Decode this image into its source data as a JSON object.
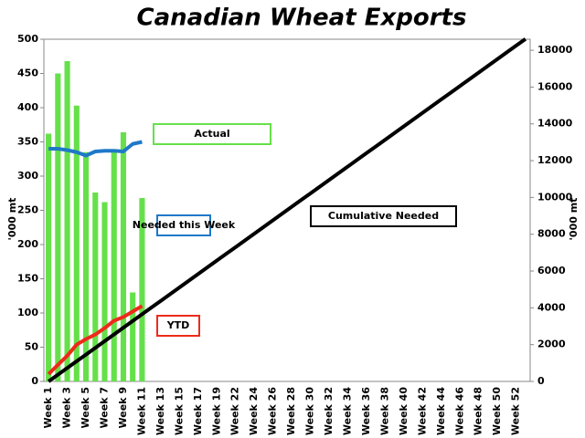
{
  "chart_data": {
    "type": "bar",
    "title": "Canadian Wheat Exports",
    "ylabel": "'000 mt",
    "y2label": "'000 mt",
    "categories": [
      "Week 1",
      null,
      "Week 3",
      null,
      "Week 5",
      null,
      "Week 7",
      null,
      "Week 9",
      null,
      "Week 11",
      null,
      "Week 13",
      null,
      "Week 15",
      null,
      "Week 17",
      null,
      "Week 19",
      null,
      "Week 22",
      null,
      "Week 24",
      null,
      "Week 26",
      null,
      "Week 28",
      null,
      "Week 30",
      null,
      "Week 32",
      null,
      "Week 34",
      null,
      "Week 36",
      null,
      "Week 38",
      null,
      "Week 40",
      null,
      "Week 42",
      null,
      "Week 44",
      null,
      "Week 46",
      null,
      "Week 48",
      null,
      "Week 50",
      null,
      "Week 52",
      null
    ],
    "ylim": [
      0,
      500
    ],
    "yticks": [
      0,
      50,
      100,
      150,
      200,
      250,
      300,
      350,
      400,
      450,
      500
    ],
    "y2lim": [
      0,
      18600
    ],
    "y2ticks": [
      0,
      2000,
      4000,
      6000,
      8000,
      10000,
      12000,
      14000,
      16000,
      18000
    ],
    "series": [
      {
        "name": "Actual",
        "type": "bar",
        "color": "#66e04a",
        "values": [
          362,
          450,
          468,
          403,
          335,
          276,
          262,
          335,
          364,
          130,
          268,
          null,
          null,
          null,
          null,
          null,
          null,
          null,
          null,
          null,
          null,
          null,
          null,
          null,
          null,
          null,
          null,
          null,
          null,
          null,
          null,
          null,
          null,
          null,
          null,
          null,
          null,
          null,
          null,
          null,
          null,
          null,
          null,
          null,
          null,
          null,
          null,
          null,
          null,
          null,
          null,
          null
        ]
      },
      {
        "name": "Needed this Week",
        "type": "line",
        "color": "#1f78c8",
        "values": [
          340,
          340,
          338,
          335,
          330,
          336,
          337,
          337,
          336,
          347,
          350,
          null,
          null,
          null,
          null,
          null,
          null,
          null,
          null,
          null,
          null,
          null,
          null,
          null,
          null,
          null,
          null,
          null,
          null,
          null,
          null,
          null,
          null,
          null,
          null,
          null,
          null,
          null,
          null,
          null,
          null,
          null,
          null,
          null,
          null,
          null,
          null,
          null,
          null,
          null,
          null,
          null
        ]
      },
      {
        "name": "YTD",
        "type": "line",
        "axis": "y2",
        "color": "#ee2a1a",
        "values": [
          400,
          900,
          1400,
          2000,
          2300,
          2550,
          2900,
          3300,
          3500,
          3800,
          4100,
          null,
          null,
          null,
          null,
          null,
          null,
          null,
          null,
          null,
          null,
          null,
          null,
          null,
          null,
          null,
          null,
          null,
          null,
          null,
          null,
          null,
          null,
          null,
          null,
          null,
          null,
          null,
          null,
          null,
          null,
          null,
          null,
          null,
          null,
          null,
          null,
          null,
          null,
          null,
          null,
          null
        ]
      },
      {
        "name": "Cumulative Needed",
        "type": "line",
        "axis": "y2",
        "color": "#000000",
        "values": [
          0,
          365,
          730,
          1095,
          1460,
          1825,
          2190,
          2555,
          2920,
          3285,
          3650,
          4015,
          4380,
          4745,
          5110,
          5475,
          5840,
          6205,
          6570,
          6935,
          7300,
          7665,
          8030,
          8395,
          8760,
          9125,
          9490,
          9855,
          10220,
          10585,
          10950,
          11315,
          11680,
          12045,
          12410,
          12775,
          13140,
          13505,
          13870,
          14235,
          14600,
          14965,
          15330,
          15695,
          16060,
          16425,
          16790,
          17155,
          17520,
          17885,
          18250,
          18615
        ]
      }
    ]
  }
}
